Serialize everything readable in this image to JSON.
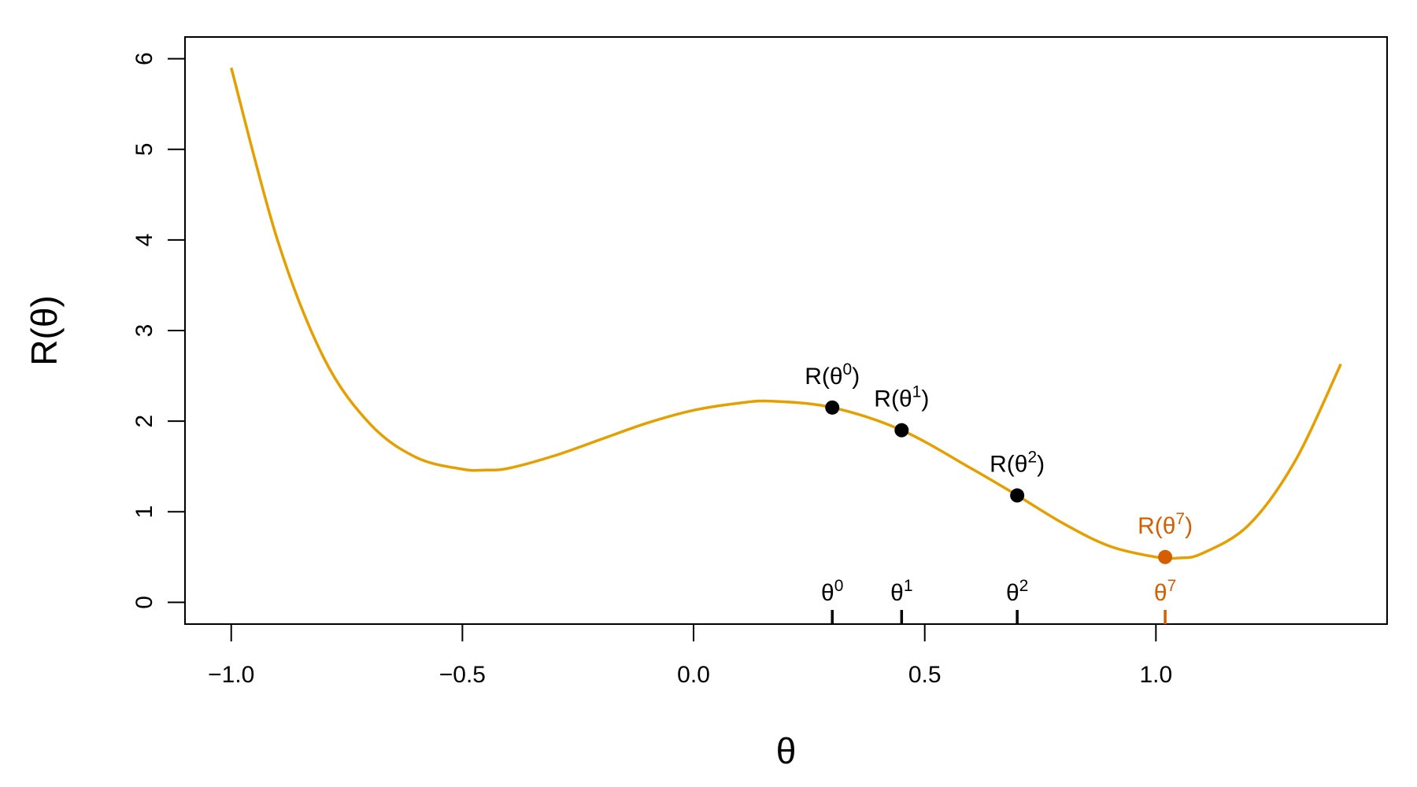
{
  "chart_data": {
    "type": "line",
    "xlabel": "θ",
    "ylabel": "R(θ)",
    "xlim": [
      -1.1,
      1.5
    ],
    "ylim": [
      -0.24,
      6.24
    ],
    "x_ticks": [
      "−1.0",
      "−0.5",
      "0.0",
      "0.5",
      "1.0"
    ],
    "x_tick_values": [
      -1.0,
      -0.5,
      0.0,
      0.5,
      1.0
    ],
    "y_ticks": [
      "0",
      "1",
      "2",
      "3",
      "4",
      "5",
      "6"
    ],
    "y_tick_values": [
      0,
      1,
      2,
      3,
      4,
      5,
      6
    ],
    "grid": false,
    "curve": {
      "color": "#E69F00",
      "x": [
        -1.0,
        -0.9,
        -0.8,
        -0.7,
        -0.6,
        -0.5,
        -0.45,
        -0.4,
        -0.3,
        -0.2,
        -0.1,
        0.0,
        0.1,
        0.17,
        0.3,
        0.45,
        0.6,
        0.7,
        0.8,
        0.9,
        1.0,
        1.05,
        1.1,
        1.2,
        1.3,
        1.4
      ],
      "y": [
        5.9,
        4.0,
        2.7,
        1.97,
        1.6,
        1.47,
        1.46,
        1.48,
        1.62,
        1.8,
        1.98,
        2.12,
        2.2,
        2.22,
        2.15,
        1.9,
        1.48,
        1.18,
        0.87,
        0.62,
        0.5,
        0.49,
        0.54,
        0.85,
        1.55,
        2.63
      ]
    },
    "points": [
      {
        "x": 0.3,
        "y": 2.15,
        "label": "R(θ",
        "sup": "0",
        "tick_label": "θ",
        "tick_sup": "0",
        "color": "#000000"
      },
      {
        "x": 0.45,
        "y": 1.9,
        "label": "R(θ",
        "sup": "1",
        "tick_label": "θ",
        "tick_sup": "1",
        "color": "#000000"
      },
      {
        "x": 0.7,
        "y": 1.18,
        "label": "R(θ",
        "sup": "2",
        "tick_label": "θ",
        "tick_sup": "2",
        "color": "#000000"
      },
      {
        "x": 1.02,
        "y": 0.5,
        "label": "R(θ",
        "sup": "7",
        "tick_label": "θ",
        "tick_sup": "7",
        "color": "#D55E00"
      }
    ]
  }
}
